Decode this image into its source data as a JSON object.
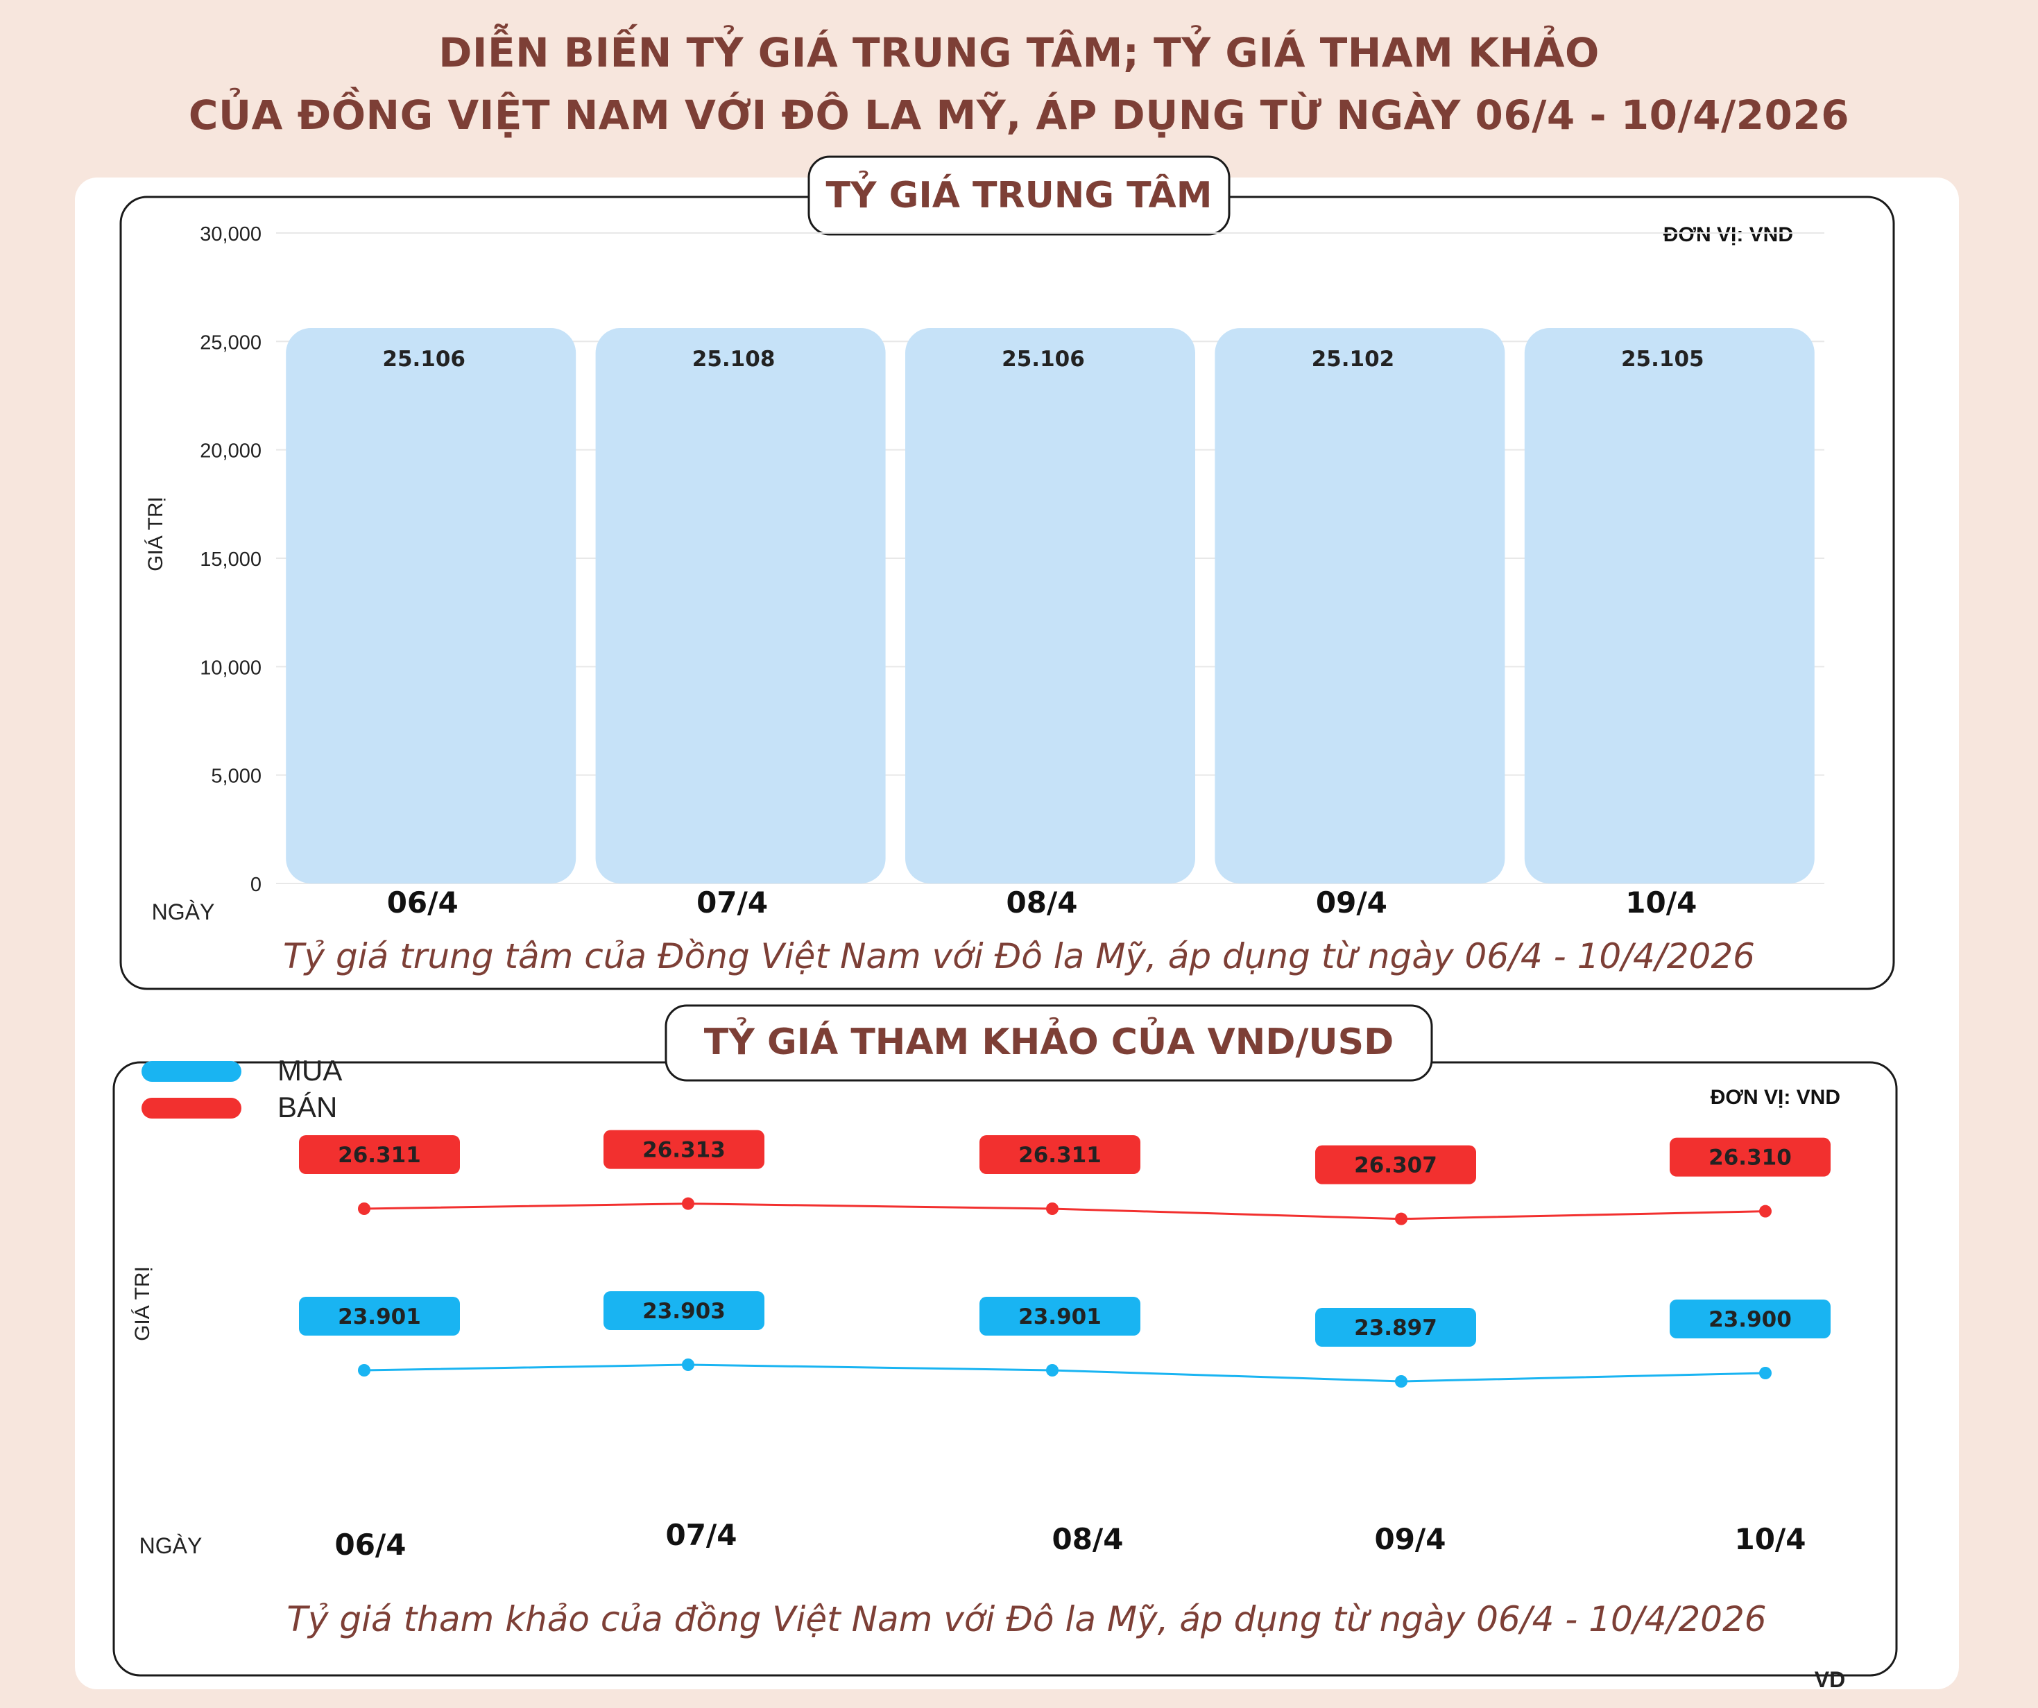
{
  "title": {
    "line1": "DIỄN BIẾN TỶ GIÁ TRUNG TÂM; TỶ GIÁ THAM KHẢO",
    "line2": "CỦA ĐỒNG VIỆT NAM VỚI ĐÔ LA MỸ, ÁP DỤNG TỪ NGÀY 06/4 - 10/4/2026"
  },
  "colors": {
    "title": "#7d3f36",
    "bar": "#c6e2f8",
    "buy": "#19b4f2",
    "sell": "#f2302f",
    "caption": "#7d3f36"
  },
  "credit": "VD",
  "chart_data": [
    {
      "type": "bar",
      "title": "TỶ GIÁ TRUNG TÂM",
      "unit_label": "ĐƠN VỊ: VND",
      "ylabel": "GIÁ TRỊ",
      "xlabel": "NGÀY",
      "categories": [
        "06/4",
        "07/4",
        "08/4",
        "09/4",
        "10/4"
      ],
      "values": [
        25106,
        25108,
        25106,
        25102,
        25105
      ],
      "value_labels": [
        "25.106",
        "25.108",
        "25.106",
        "25.102",
        "25.105"
      ],
      "ylim": [
        0,
        30000
      ],
      "yticks": [
        0,
        5000,
        10000,
        15000,
        20000,
        25000,
        30000
      ],
      "ytick_labels": [
        "0",
        "5,000",
        "10,000",
        "15,000",
        "20,000",
        "25,000",
        "30,000"
      ],
      "grid": true,
      "caption": "Tỷ giá trung tâm của Đồng Việt Nam với Đô la Mỹ, áp dụng từ ngày 06/4 - 10/4/2026"
    },
    {
      "type": "line",
      "title": "TỶ GIÁ THAM KHẢO CỦA VND/USD",
      "unit_label": "ĐƠN VỊ: VND",
      "ylabel": "GIÁ TRỊ",
      "xlabel": "NGÀY",
      "categories": [
        "06/4",
        "07/4",
        "08/4",
        "09/4",
        "10/4"
      ],
      "series": [
        {
          "name": "MUA",
          "values": [
            23901,
            23903,
            23901,
            23897,
            23900
          ],
          "labels": [
            "23.901",
            "23.903",
            "23.901",
            "23.897",
            "23.900"
          ]
        },
        {
          "name": "BÁN",
          "values": [
            26311,
            26313,
            26311,
            26307,
            26310
          ],
          "labels": [
            "26.311",
            "26.313",
            "26.311",
            "26.307",
            "26.310"
          ]
        }
      ],
      "legend": "top-left",
      "grid": false,
      "caption": "Tỷ giá tham khảo của đồng Việt Nam với Đô la Mỹ, áp dụng từ ngày 06/4 - 10/4/2026"
    }
  ]
}
